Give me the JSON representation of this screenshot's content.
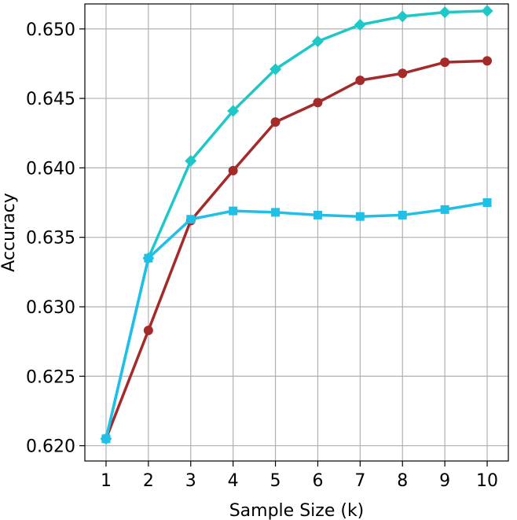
{
  "chart_data": {
    "type": "line",
    "title": "",
    "xlabel": "Sample Size (k)",
    "ylabel": "Accuracy",
    "x": [
      1,
      2,
      3,
      4,
      5,
      6,
      7,
      8,
      9,
      10
    ],
    "xlim": [
      0.5,
      10.5
    ],
    "ylim": [
      0.6189,
      0.6518
    ],
    "xticks": [
      1,
      2,
      3,
      4,
      5,
      6,
      7,
      8,
      9,
      10
    ],
    "yticks": [
      0.62,
      0.625,
      0.63,
      0.635,
      0.64,
      0.645,
      0.65
    ],
    "ytick_labels": [
      "0.620",
      "0.625",
      "0.630",
      "0.635",
      "0.640",
      "0.645",
      "0.650"
    ],
    "grid": true,
    "series": [
      {
        "color": "#a52a2a",
        "marker": "circle",
        "values": [
          0.6205,
          0.6283,
          0.6362,
          0.6398,
          0.6433,
          0.6447,
          0.6463,
          0.6468,
          0.6476,
          0.6477
        ]
      },
      {
        "color": "#1ec8c8",
        "marker": "diamond",
        "values": [
          0.6205,
          0.6335,
          0.6405,
          0.6441,
          0.6471,
          0.6491,
          0.6503,
          0.6509,
          0.6512,
          0.6513
        ]
      },
      {
        "color": "#1ec0e8",
        "marker": "square",
        "values": [
          0.6205,
          0.6335,
          0.6363,
          0.6369,
          0.6368,
          0.6366,
          0.6365,
          0.6366,
          0.637,
          0.6375
        ]
      }
    ]
  }
}
